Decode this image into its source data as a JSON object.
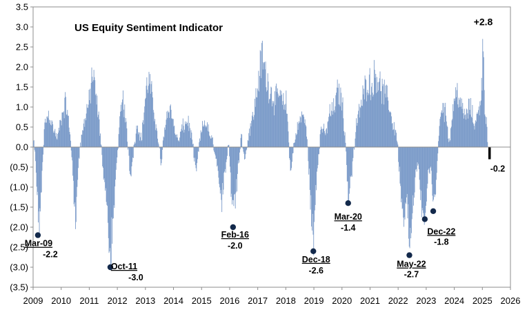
{
  "chart_data": {
    "type": "bar",
    "title": "US Equity Sentiment Indicator",
    "xlabel": "",
    "ylabel": "",
    "xlim": [
      2009,
      2026
    ],
    "ylim": [
      -3.5,
      3.5
    ],
    "y_ticks": [
      3.5,
      3.0,
      2.5,
      2.0,
      1.5,
      1.0,
      0.5,
      0.0,
      -0.5,
      -1.0,
      -1.5,
      -2.0,
      -2.5,
      -3.0,
      -3.5
    ],
    "y_tick_labels": [
      "3.5",
      "3.0",
      "2.5",
      "2.0",
      "1.5",
      "1.0",
      "0.5",
      "0.0",
      "(0.5)",
      "(1.0)",
      "(1.5)",
      "(2.0)",
      "(2.5)",
      "(3.0)",
      "(3.5)"
    ],
    "x_ticks": [
      2009,
      2010,
      2011,
      2012,
      2013,
      2014,
      2015,
      2016,
      2017,
      2018,
      2019,
      2020,
      2021,
      2022,
      2023,
      2024,
      2025,
      2026
    ],
    "x_tick_labels": [
      "2009",
      "2010",
      "2011",
      "2012",
      "2013",
      "2014",
      "2015",
      "2016",
      "2017",
      "2018",
      "2019",
      "2020",
      "2021",
      "2022",
      "2023",
      "2024",
      "2025",
      "2026"
    ],
    "grid": false,
    "series_color": "#7b9bc9",
    "latest_color": "#000000",
    "marker_color": "#13294b",
    "series_anchors": {
      "description": "weekly sentiment readings, interpolated between these anchor points (year, value)",
      "points": [
        [
          2009.0,
          0.2
        ],
        [
          2009.1,
          -0.6
        ],
        [
          2009.2,
          -2.2
        ],
        [
          2009.3,
          -0.8
        ],
        [
          2009.4,
          0.6
        ],
        [
          2009.55,
          0.9
        ],
        [
          2009.7,
          0.5
        ],
        [
          2009.85,
          0.2
        ],
        [
          2010.0,
          0.8
        ],
        [
          2010.15,
          1.2
        ],
        [
          2010.3,
          0.4
        ],
        [
          2010.4,
          -0.6
        ],
        [
          2010.5,
          -2.2
        ],
        [
          2010.6,
          -0.4
        ],
        [
          2010.75,
          0.4
        ],
        [
          2010.9,
          1.0
        ],
        [
          2011.0,
          1.2
        ],
        [
          2011.1,
          2.0
        ],
        [
          2011.2,
          1.5
        ],
        [
          2011.35,
          0.6
        ],
        [
          2011.45,
          -0.3
        ],
        [
          2011.6,
          -1.5
        ],
        [
          2011.75,
          -3.0
        ],
        [
          2011.85,
          -1.8
        ],
        [
          2011.95,
          -0.5
        ],
        [
          2012.1,
          0.8
        ],
        [
          2012.2,
          1.3
        ],
        [
          2012.35,
          0.2
        ],
        [
          2012.45,
          -0.8
        ],
        [
          2012.55,
          -0.2
        ],
        [
          2012.7,
          0.6
        ],
        [
          2012.85,
          0.2
        ],
        [
          2013.0,
          1.4
        ],
        [
          2013.1,
          1.8
        ],
        [
          2013.25,
          1.2
        ],
        [
          2013.4,
          0.4
        ],
        [
          2013.55,
          -0.4
        ],
        [
          2013.7,
          0.7
        ],
        [
          2013.85,
          1.1
        ],
        [
          2014.0,
          0.6
        ],
        [
          2014.15,
          0.1
        ],
        [
          2014.3,
          0.5
        ],
        [
          2014.5,
          0.7
        ],
        [
          2014.65,
          0.2
        ],
        [
          2014.8,
          -0.6
        ],
        [
          2014.95,
          0.3
        ],
        [
          2015.1,
          0.7
        ],
        [
          2015.25,
          0.4
        ],
        [
          2015.4,
          0.1
        ],
        [
          2015.55,
          -0.4
        ],
        [
          2015.7,
          -1.4
        ],
        [
          2015.85,
          -0.6
        ],
        [
          2015.95,
          0.2
        ],
        [
          2016.05,
          -1.2
        ],
        [
          2016.12,
          -2.0
        ],
        [
          2016.25,
          -0.9
        ],
        [
          2016.4,
          0.3
        ],
        [
          2016.55,
          -0.3
        ],
        [
          2016.7,
          0.5
        ],
        [
          2016.85,
          0.9
        ],
        [
          2017.0,
          1.7
        ],
        [
          2017.15,
          2.4
        ],
        [
          2017.3,
          1.8
        ],
        [
          2017.45,
          1.5
        ],
        [
          2017.6,
          1.2
        ],
        [
          2017.75,
          1.4
        ],
        [
          2017.9,
          1.1
        ],
        [
          2018.0,
          1.2
        ],
        [
          2018.08,
          0.4
        ],
        [
          2018.15,
          -0.8
        ],
        [
          2018.3,
          0.2
        ],
        [
          2018.45,
          0.6
        ],
        [
          2018.6,
          0.9
        ],
        [
          2018.75,
          0.3
        ],
        [
          2018.85,
          -1.2
        ],
        [
          2018.98,
          -2.6
        ],
        [
          2019.1,
          -0.8
        ],
        [
          2019.25,
          0.6
        ],
        [
          2019.4,
          0.3
        ],
        [
          2019.55,
          0.9
        ],
        [
          2019.7,
          1.0
        ],
        [
          2019.85,
          1.5
        ],
        [
          2020.0,
          1.2
        ],
        [
          2020.1,
          0.3
        ],
        [
          2020.22,
          -1.4
        ],
        [
          2020.35,
          -0.6
        ],
        [
          2020.5,
          0.6
        ],
        [
          2020.7,
          1.2
        ],
        [
          2020.9,
          1.8
        ],
        [
          2021.05,
          1.6
        ],
        [
          2021.2,
          2.0
        ],
        [
          2021.35,
          1.6
        ],
        [
          2021.5,
          1.4
        ],
        [
          2021.65,
          1.2
        ],
        [
          2021.8,
          0.6
        ],
        [
          2021.95,
          0.3
        ],
        [
          2022.05,
          -0.8
        ],
        [
          2022.2,
          -1.8
        ],
        [
          2022.3,
          -1.2
        ],
        [
          2022.4,
          -2.7
        ],
        [
          2022.5,
          -1.5
        ],
        [
          2022.6,
          -0.8
        ],
        [
          2022.7,
          -0.4
        ],
        [
          2022.8,
          -1.4
        ],
        [
          2022.95,
          -1.8
        ],
        [
          2023.05,
          -0.8
        ],
        [
          2023.15,
          -0.5
        ],
        [
          2023.25,
          -1.6
        ],
        [
          2023.35,
          -0.7
        ],
        [
          2023.45,
          0.4
        ],
        [
          2023.55,
          1.2
        ],
        [
          2023.7,
          0.8
        ],
        [
          2023.82,
          0.1
        ],
        [
          2023.95,
          1.1
        ],
        [
          2024.1,
          1.5
        ],
        [
          2024.25,
          1.0
        ],
        [
          2024.4,
          0.8
        ],
        [
          2024.55,
          1.1
        ],
        [
          2024.7,
          0.6
        ],
        [
          2024.85,
          0.9
        ],
        [
          2024.95,
          1.5
        ],
        [
          2025.03,
          2.8
        ],
        [
          2025.08,
          1.0
        ],
        [
          2025.14,
          0.6
        ],
        [
          2025.18,
          0.0
        ]
      ]
    },
    "latest_point": {
      "x": 2025.25,
      "y": -0.2,
      "label": "-0.2"
    },
    "annotations": [
      {
        "id": "mar-09",
        "date": "Mar-09",
        "value_label": "-2.2",
        "x": 2009.17,
        "y": -2.2
      },
      {
        "id": "oct-11",
        "date": "Oct-11",
        "value_label": "-3.0",
        "x": 2011.75,
        "y": -3.0
      },
      {
        "id": "feb-16",
        "date": "Feb-16",
        "value_label": "-2.0",
        "x": 2016.12,
        "y": -2.0
      },
      {
        "id": "dec-18",
        "date": "Dec-18",
        "value_label": "-2.6",
        "x": 2018.98,
        "y": -2.6
      },
      {
        "id": "mar-20",
        "date": "Mar-20",
        "value_label": "-1.4",
        "x": 2020.22,
        "y": -1.4
      },
      {
        "id": "may-22",
        "date": "May-22",
        "value_label": "-2.7",
        "x": 2022.4,
        "y": -2.7
      },
      {
        "id": "dec-22",
        "date": "Dec-22",
        "value_label": "-1.8",
        "x": 2022.95,
        "y": -1.8
      },
      {
        "id": "mar-23",
        "date": "",
        "value_label": "",
        "x": 2023.25,
        "y": -1.6
      }
    ],
    "peak_label": {
      "x": 2025.03,
      "y": 2.8,
      "label": "+2.8"
    }
  }
}
